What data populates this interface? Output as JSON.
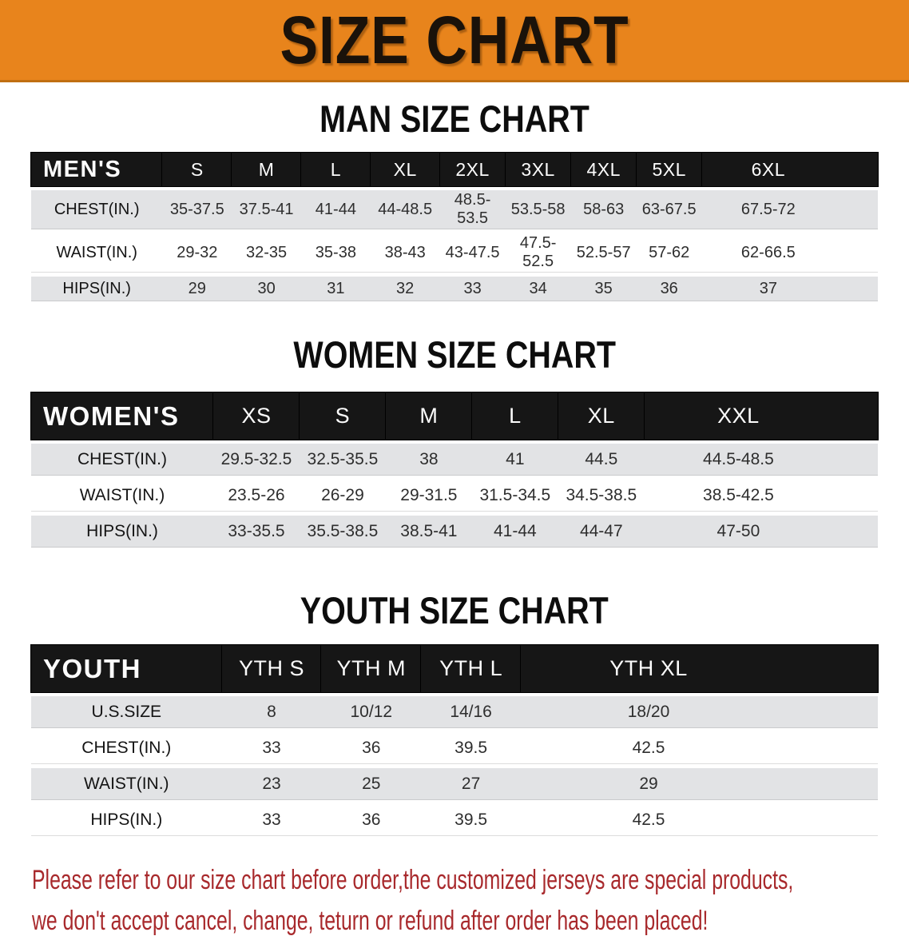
{
  "banner": {
    "title": "SIZE CHART"
  },
  "colors": {
    "banner_orange": "#E8841C",
    "banner_border": "#C06F12",
    "header_black": "#161616",
    "row_gray": "#E2E3E5",
    "disclaimer_red": "#A8292C"
  },
  "sections": [
    {
      "heading": "MAN SIZE CHART",
      "table": {
        "label": "MEN'S",
        "columns": [
          "S",
          "M",
          "L",
          "XL",
          "2XL",
          "3XL",
          "4XL",
          "5XL",
          "6XL"
        ],
        "rows": [
          {
            "label": "CHEST(IN.)",
            "values": [
              "35-37.5",
              "37.5-41",
              "41-44",
              "44-48.5",
              "48.5-53.5",
              "53.5-58",
              "58-63",
              "63-67.5",
              "67.5-72"
            ]
          },
          {
            "label": "WAIST(IN.)",
            "values": [
              "29-32",
              "32-35",
              "35-38",
              "38-43",
              "43-47.5",
              "47.5-52.5",
              "52.5-57",
              "57-62",
              "62-66.5"
            ]
          },
          {
            "label": "HIPS(IN.)",
            "values": [
              "29",
              "30",
              "31",
              "32",
              "33",
              "34",
              "35",
              "36",
              "37"
            ]
          }
        ]
      }
    },
    {
      "heading": "WOMEN SIZE CHART",
      "table": {
        "label": "WOMEN'S",
        "columns": [
          "XS",
          "S",
          "M",
          "L",
          "XL",
          "XXL"
        ],
        "rows": [
          {
            "label": "CHEST(IN.)",
            "values": [
              "29.5-32.5",
              "32.5-35.5",
              "38",
              "41",
              "44.5",
              "44.5-48.5"
            ]
          },
          {
            "label": "WAIST(IN.)",
            "values": [
              "23.5-26",
              "26-29",
              "29-31.5",
              "31.5-34.5",
              "34.5-38.5",
              "38.5-42.5"
            ]
          },
          {
            "label": "HIPS(IN.)",
            "values": [
              "33-35.5",
              "35.5-38.5",
              "38.5-41",
              "41-44",
              "44-47",
              "47-50"
            ]
          }
        ]
      }
    },
    {
      "heading": "YOUTH SIZE CHART",
      "table": {
        "label": "YOUTH",
        "columns": [
          "YTH S",
          "YTH M",
          "YTH L",
          "YTH XL"
        ],
        "rows": [
          {
            "label": "U.S.SIZE",
            "values": [
              "8",
              "10/12",
              "14/16",
              "18/20"
            ]
          },
          {
            "label": "CHEST(IN.)",
            "values": [
              "33",
              "36",
              "39.5",
              "42.5"
            ]
          },
          {
            "label": "WAIST(IN.)",
            "values": [
              "23",
              "25",
              "27",
              "29"
            ]
          },
          {
            "label": "HIPS(IN.)",
            "values": [
              "33",
              "36",
              "39.5",
              "42.5"
            ]
          }
        ]
      }
    }
  ],
  "disclaimer": {
    "line1": "Please refer to our size chart before order,the customized jerseys are special products,",
    "line2": "we don't accept cancel, change, teturn or refund after order has been placed!"
  }
}
